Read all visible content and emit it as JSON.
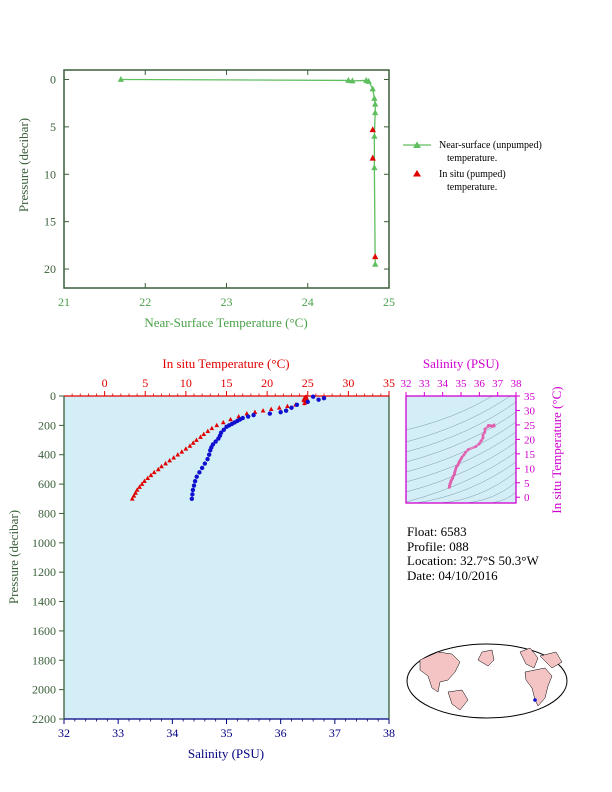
{
  "colors": {
    "green_axis": "#4aa04a",
    "green_line": "#5fbf5f",
    "dark_green": "#3a5f3a",
    "red": "#e00000",
    "blue": "#1010d0",
    "navy": "#000080",
    "magenta": "#d000d0",
    "plot_bg": "#d4eef8"
  },
  "float_info": {
    "float": "Float:  6583",
    "profile": "Profile:  088",
    "location": "Location:  32.7°S  50.3°W",
    "date": "Date:  04/10/2016"
  },
  "chart_data": [
    {
      "type": "line",
      "xlabel": "Near-Surface Temperature (°C)",
      "ylabel": "Pressure (decibar)",
      "xlim": [
        21,
        25
      ],
      "ylim": [
        22,
        -1
      ],
      "x_ticks": [
        "21",
        "22",
        "23",
        "24",
        "25"
      ],
      "y_ticks": [
        "0",
        "5",
        "10",
        "15",
        "20"
      ],
      "legend": [
        {
          "label": "Near-surface (unpumped)",
          "label2": "temperature."
        },
        {
          "label": "In situ (pumped)",
          "label2": "temperature."
        }
      ],
      "series": [
        {
          "name": "Near-surface (unpumped) temperature.",
          "points": [
            [
              21.7,
              0.0
            ],
            [
              24.5,
              0.1
            ],
            [
              24.55,
              0.15
            ],
            [
              24.72,
              0.1
            ],
            [
              24.75,
              0.2
            ],
            [
              24.8,
              1.0
            ],
            [
              24.82,
              2.0
            ],
            [
              24.83,
              2.6
            ],
            [
              24.83,
              3.5
            ],
            [
              24.82,
              6.0
            ],
            [
              24.82,
              9.3
            ],
            [
              24.83,
              19.5
            ]
          ]
        },
        {
          "name": "In situ (pumped) temperature.",
          "points": [
            [
              24.8,
              5.3
            ],
            [
              24.8,
              8.3
            ],
            [
              24.83,
              18.7
            ]
          ]
        }
      ]
    },
    {
      "type": "scatter",
      "top_xlabel": "In situ Temperature (°C)",
      "bottom_xlabel": "Salinity (PSU)",
      "ylabel": "Pressure (decibar)",
      "temp_lim": [
        -5,
        35
      ],
      "sal_lim": [
        32,
        38
      ],
      "ylim": [
        2200,
        0
      ],
      "temp_ticks": [
        "0",
        "5",
        "10",
        "15",
        "20",
        "25",
        "30",
        "35"
      ],
      "sal_ticks": [
        "32",
        "33",
        "34",
        "35",
        "36",
        "37",
        "38"
      ],
      "y_ticks": [
        "0",
        "200",
        "400",
        "600",
        "800",
        "1000",
        "1200",
        "1400",
        "1600",
        "1800",
        "2000",
        "2200"
      ],
      "temperature_profile": [
        [
          24.8,
          5
        ],
        [
          24.7,
          10
        ],
        [
          24.6,
          15
        ],
        [
          24.9,
          20
        ],
        [
          24.5,
          25
        ],
        [
          24.6,
          30
        ],
        [
          24.8,
          40
        ],
        [
          24.6,
          50
        ],
        [
          23.5,
          60
        ],
        [
          22.5,
          70
        ],
        [
          21.5,
          80
        ],
        [
          20.5,
          90
        ],
        [
          19.5,
          100
        ],
        [
          18.5,
          110
        ],
        [
          17.5,
          120
        ],
        [
          16.5,
          140
        ],
        [
          15.5,
          160
        ],
        [
          14.6,
          180
        ],
        [
          13.8,
          200
        ],
        [
          13.2,
          220
        ],
        [
          12.7,
          240
        ],
        [
          12.2,
          260
        ],
        [
          11.8,
          280
        ],
        [
          11.3,
          300
        ],
        [
          10.9,
          320
        ],
        [
          10.5,
          340
        ],
        [
          10.0,
          360
        ],
        [
          9.5,
          380
        ],
        [
          9.0,
          400
        ],
        [
          8.5,
          420
        ],
        [
          8.0,
          440
        ],
        [
          7.5,
          460
        ],
        [
          7.0,
          480
        ],
        [
          6.6,
          500
        ],
        [
          6.1,
          520
        ],
        [
          5.7,
          540
        ],
        [
          5.3,
          560
        ],
        [
          4.9,
          580
        ],
        [
          4.6,
          600
        ],
        [
          4.3,
          620
        ],
        [
          4.0,
          640
        ],
        [
          3.8,
          660
        ],
        [
          3.6,
          680
        ],
        [
          3.4,
          700
        ]
      ],
      "salinity_profile": [
        [
          36.6,
          5
        ],
        [
          36.8,
          15
        ],
        [
          36.7,
          25
        ],
        [
          36.5,
          40
        ],
        [
          36.3,
          60
        ],
        [
          36.2,
          80
        ],
        [
          36.1,
          100
        ],
        [
          36.0,
          110
        ],
        [
          35.8,
          120
        ],
        [
          35.5,
          130
        ],
        [
          35.4,
          140
        ],
        [
          35.3,
          150
        ],
        [
          35.25,
          160
        ],
        [
          35.2,
          170
        ],
        [
          35.15,
          180
        ],
        [
          35.1,
          190
        ],
        [
          35.05,
          200
        ],
        [
          35.0,
          210
        ],
        [
          34.95,
          230
        ],
        [
          34.9,
          250
        ],
        [
          34.88,
          270
        ],
        [
          34.85,
          290
        ],
        [
          34.8,
          310
        ],
        [
          34.75,
          330
        ],
        [
          34.72,
          350
        ],
        [
          34.7,
          370
        ],
        [
          34.68,
          400
        ],
        [
          34.65,
          430
        ],
        [
          34.6,
          460
        ],
        [
          34.55,
          490
        ],
        [
          34.5,
          520
        ],
        [
          34.45,
          550
        ],
        [
          34.42,
          580
        ],
        [
          34.4,
          610
        ],
        [
          34.38,
          640
        ],
        [
          34.37,
          670
        ],
        [
          34.36,
          700
        ]
      ]
    },
    {
      "type": "scatter",
      "xlabel": "Salinity (PSU)",
      "ylabel": "In situ Temperature (°C)",
      "xlim": [
        32,
        38
      ],
      "ylim": [
        -2,
        35
      ],
      "x_ticks": [
        "32",
        "33",
        "34",
        "35",
        "36",
        "37",
        "38"
      ],
      "y_ticks": [
        "0",
        "5",
        "10",
        "15",
        "20",
        "25",
        "30",
        "35"
      ]
    }
  ]
}
